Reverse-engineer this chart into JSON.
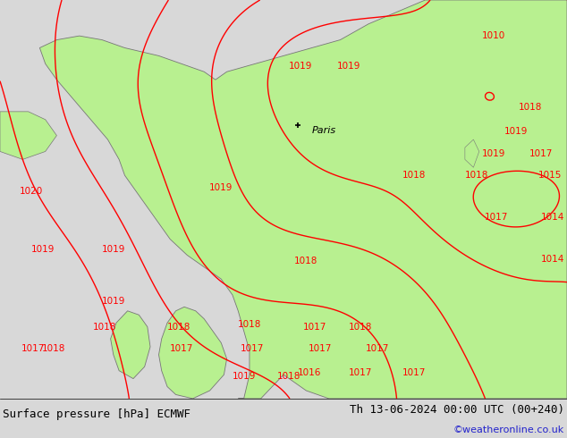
{
  "title_left": "Surface pressure [hPa] ECMWF",
  "title_right": "Th 13-06-2024 00:00 UTC (00+240)",
  "watermark": "©weatheronline.co.uk",
  "bg_color": "#d8d8d8",
  "land_color": "#b8f090",
  "sea_color": "#d8d8d8",
  "contour_color": "#ff0000",
  "border_color": "#777777",
  "title_fontsize": 9,
  "label_fontsize": 7.5,
  "paris_fx": 0.525,
  "paris_fy": 0.315,
  "pressure_labels": [
    {
      "fx": 0.055,
      "fy": 0.48,
      "val": "1020"
    },
    {
      "fx": 0.075,
      "fy": 0.625,
      "val": "1019"
    },
    {
      "fx": 0.2,
      "fy": 0.625,
      "val": "1019"
    },
    {
      "fx": 0.39,
      "fy": 0.47,
      "val": "1019"
    },
    {
      "fx": 0.54,
      "fy": 0.655,
      "val": "1018"
    },
    {
      "fx": 0.635,
      "fy": 0.82,
      "val": "1018"
    },
    {
      "fx": 0.44,
      "fy": 0.815,
      "val": "1018"
    },
    {
      "fx": 0.315,
      "fy": 0.82,
      "val": "1018"
    },
    {
      "fx": 0.185,
      "fy": 0.82,
      "val": "1018"
    },
    {
      "fx": 0.2,
      "fy": 0.755,
      "val": "1019"
    },
    {
      "fx": 0.32,
      "fy": 0.875,
      "val": "1017"
    },
    {
      "fx": 0.445,
      "fy": 0.875,
      "val": "1017"
    },
    {
      "fx": 0.565,
      "fy": 0.875,
      "val": "1017"
    },
    {
      "fx": 0.665,
      "fy": 0.875,
      "val": "1017"
    },
    {
      "fx": 0.545,
      "fy": 0.935,
      "val": "1016"
    },
    {
      "fx": 0.635,
      "fy": 0.935,
      "val": "1017"
    },
    {
      "fx": 0.73,
      "fy": 0.935,
      "val": "1017"
    },
    {
      "fx": 0.43,
      "fy": 0.945,
      "val": "1019"
    },
    {
      "fx": 0.51,
      "fy": 0.945,
      "val": "1018"
    },
    {
      "fx": 0.555,
      "fy": 0.82,
      "val": "1017"
    },
    {
      "fx": 0.73,
      "fy": 0.44,
      "val": "1018"
    },
    {
      "fx": 0.84,
      "fy": 0.44,
      "val": "1018"
    },
    {
      "fx": 0.87,
      "fy": 0.385,
      "val": "1019"
    },
    {
      "fx": 0.91,
      "fy": 0.33,
      "val": "1019"
    },
    {
      "fx": 0.935,
      "fy": 0.27,
      "val": "1018"
    },
    {
      "fx": 0.955,
      "fy": 0.385,
      "val": "1017"
    },
    {
      "fx": 0.97,
      "fy": 0.44,
      "val": "1015"
    },
    {
      "fx": 0.975,
      "fy": 0.545,
      "val": "1014"
    },
    {
      "fx": 0.975,
      "fy": 0.65,
      "val": "1014"
    },
    {
      "fx": 0.875,
      "fy": 0.545,
      "val": "1017"
    },
    {
      "fx": 0.615,
      "fy": 0.165,
      "val": "1019"
    },
    {
      "fx": 0.53,
      "fy": 0.165,
      "val": "1019"
    },
    {
      "fx": 0.87,
      "fy": 0.09,
      "val": "1010"
    },
    {
      "fx": 0.095,
      "fy": 0.875,
      "val": "1018"
    },
    {
      "fx": 0.058,
      "fy": 0.875,
      "val": "1017"
    }
  ]
}
